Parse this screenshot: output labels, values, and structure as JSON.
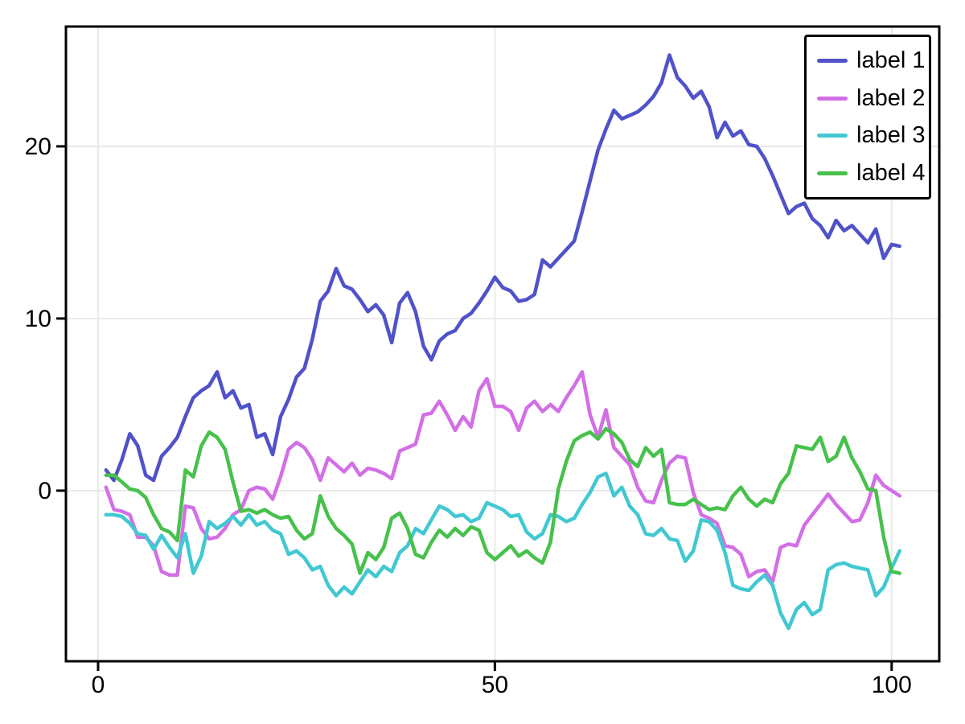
{
  "chart_data": {
    "type": "line",
    "title": "",
    "xlabel": "",
    "ylabel": "",
    "grid": true,
    "legend_position": "top-right",
    "background": "#ffffff",
    "grid_color": "#e8e8e8",
    "frame_color": "#000000",
    "tick_label_color": "#000000",
    "x_start": 1,
    "x_step": 1,
    "n_points": 101,
    "xlim": [
      -4.05,
      106.0
    ],
    "ylim": [
      -9.91,
      26.96
    ],
    "x_axis": {
      "ticks": [
        0,
        50,
        100
      ],
      "tick_labels": [
        "0",
        "50",
        "100"
      ]
    },
    "y_axis": {
      "ticks": [
        0,
        10,
        20
      ],
      "tick_labels": [
        "0",
        "10",
        "20"
      ]
    },
    "series": [
      {
        "name": "label 1",
        "color": "#4f52c9",
        "values": [
          1.2,
          0.6,
          1.8,
          3.3,
          2.6,
          0.9,
          0.6,
          2.0,
          2.5,
          3.1,
          4.3,
          5.4,
          5.8,
          6.1,
          6.9,
          5.4,
          5.8,
          4.8,
          5.0,
          3.1,
          3.3,
          2.1,
          4.3,
          5.3,
          6.6,
          7.1,
          8.8,
          11.0,
          11.6,
          12.9,
          11.9,
          11.7,
          11.1,
          10.4,
          10.8,
          10.2,
          8.6,
          10.9,
          11.5,
          10.4,
          8.4,
          7.6,
          8.7,
          9.1,
          9.3,
          10.0,
          10.3,
          10.9,
          11.6,
          12.4,
          11.8,
          11.6,
          11.0,
          11.1,
          11.4,
          13.4,
          13.0,
          13.5,
          14.0,
          14.5,
          16.2,
          18.0,
          19.8,
          21.0,
          22.1,
          21.6,
          21.8,
          22.0,
          22.4,
          22.9,
          23.7,
          25.3,
          24.0,
          23.5,
          22.8,
          23.2,
          22.3,
          20.5,
          21.4,
          20.6,
          20.9,
          20.1,
          20.0,
          19.3,
          18.3,
          17.2,
          16.1,
          16.5,
          16.7,
          15.8,
          15.4,
          14.7,
          15.7,
          15.1,
          15.4,
          14.9,
          14.4,
          15.2,
          13.5,
          14.3,
          14.2
        ]
      },
      {
        "name": "label 2",
        "color": "#d36fe6",
        "values": [
          0.2,
          -1.1,
          -1.2,
          -1.4,
          -2.7,
          -2.7,
          -3.2,
          -4.7,
          -4.9,
          -4.9,
          -0.9,
          -1.0,
          -2.2,
          -2.8,
          -2.7,
          -2.2,
          -1.4,
          -1.1,
          0.0,
          0.2,
          0.1,
          -0.5,
          0.8,
          2.4,
          2.8,
          2.5,
          1.8,
          0.6,
          1.9,
          1.5,
          1.1,
          1.6,
          0.9,
          1.3,
          1.2,
          1.0,
          0.7,
          2.3,
          2.5,
          2.7,
          4.4,
          4.5,
          5.2,
          4.4,
          3.5,
          4.3,
          3.7,
          5.8,
          6.5,
          4.9,
          4.9,
          4.6,
          3.5,
          4.8,
          5.2,
          4.6,
          5.0,
          4.6,
          5.4,
          6.1,
          6.9,
          4.4,
          3.1,
          4.7,
          2.5,
          2.0,
          1.5,
          0.2,
          -0.6,
          -0.7,
          0.6,
          1.6,
          2.0,
          1.9,
          -0.1,
          -1.4,
          -1.6,
          -1.9,
          -3.2,
          -3.3,
          -3.7,
          -5.0,
          -4.7,
          -4.6,
          -5.3,
          -3.3,
          -3.1,
          -3.2,
          -2.0,
          -1.4,
          -0.8,
          -0.2,
          -0.8,
          -1.3,
          -1.8,
          -1.7,
          -0.7,
          0.9,
          0.3,
          0.0,
          -0.3
        ]
      },
      {
        "name": "label 3",
        "color": "#41c8d2",
        "values": [
          -1.4,
          -1.4,
          -1.5,
          -1.9,
          -2.5,
          -2.6,
          -3.4,
          -2.6,
          -3.3,
          -3.9,
          -2.5,
          -4.8,
          -3.8,
          -1.8,
          -2.2,
          -1.9,
          -1.5,
          -2.0,
          -1.4,
          -2.0,
          -1.8,
          -2.3,
          -2.5,
          -3.7,
          -3.5,
          -3.9,
          -4.6,
          -4.4,
          -5.5,
          -6.1,
          -5.6,
          -6.0,
          -5.3,
          -4.6,
          -5.0,
          -4.4,
          -4.7,
          -3.6,
          -3.2,
          -2.2,
          -2.5,
          -1.7,
          -0.9,
          -1.1,
          -1.5,
          -1.4,
          -1.8,
          -1.6,
          -0.7,
          -0.9,
          -1.1,
          -1.5,
          -1.4,
          -2.4,
          -2.8,
          -2.5,
          -1.4,
          -1.5,
          -1.8,
          -1.6,
          -0.8,
          -0.1,
          0.8,
          1.0,
          -0.3,
          0.2,
          -0.9,
          -1.4,
          -2.5,
          -2.6,
          -2.2,
          -2.8,
          -2.9,
          -4.1,
          -3.5,
          -1.7,
          -1.8,
          -2.3,
          -3.6,
          -5.5,
          -5.7,
          -5.8,
          -5.3,
          -4.9,
          -5.5,
          -7.1,
          -8.0,
          -6.9,
          -6.5,
          -7.2,
          -6.9,
          -4.6,
          -4.3,
          -4.2,
          -4.4,
          -4.5,
          -4.6,
          -6.1,
          -5.6,
          -4.5,
          -3.5
        ]
      },
      {
        "name": "label 4",
        "color": "#47c14c",
        "values": [
          0.9,
          0.9,
          0.5,
          0.1,
          0.0,
          -0.4,
          -1.4,
          -2.2,
          -2.4,
          -2.9,
          1.2,
          0.8,
          2.6,
          3.4,
          3.1,
          2.4,
          0.5,
          -1.2,
          -1.1,
          -1.3,
          -1.1,
          -1.4,
          -1.6,
          -1.5,
          -2.3,
          -2.8,
          -2.5,
          -0.3,
          -1.5,
          -2.2,
          -2.6,
          -3.1,
          -4.8,
          -3.6,
          -4.0,
          -3.3,
          -1.6,
          -1.3,
          -2.2,
          -3.7,
          -3.9,
          -3.0,
          -2.3,
          -2.7,
          -2.2,
          -2.6,
          -2.1,
          -2.3,
          -3.6,
          -4.0,
          -3.6,
          -3.2,
          -3.8,
          -3.5,
          -3.9,
          -4.2,
          -3.0,
          0.1,
          1.7,
          2.9,
          3.2,
          3.4,
          3.0,
          3.6,
          3.3,
          2.8,
          1.8,
          1.4,
          2.5,
          2.0,
          2.4,
          -0.7,
          -0.8,
          -0.8,
          -0.5,
          -0.8,
          -1.1,
          -1.0,
          -1.1,
          -0.3,
          0.2,
          -0.5,
          -0.9,
          -0.5,
          -0.7,
          0.4,
          1.0,
          2.6,
          2.5,
          2.4,
          3.1,
          1.7,
          2.0,
          3.1,
          1.9,
          1.1,
          0.1,
          0.0,
          -2.7,
          -4.7,
          -4.8
        ]
      }
    ]
  },
  "legend": {
    "items": [
      {
        "label": "label 1"
      },
      {
        "label": "label 2"
      },
      {
        "label": "label 3"
      },
      {
        "label": "label 4"
      }
    ]
  }
}
